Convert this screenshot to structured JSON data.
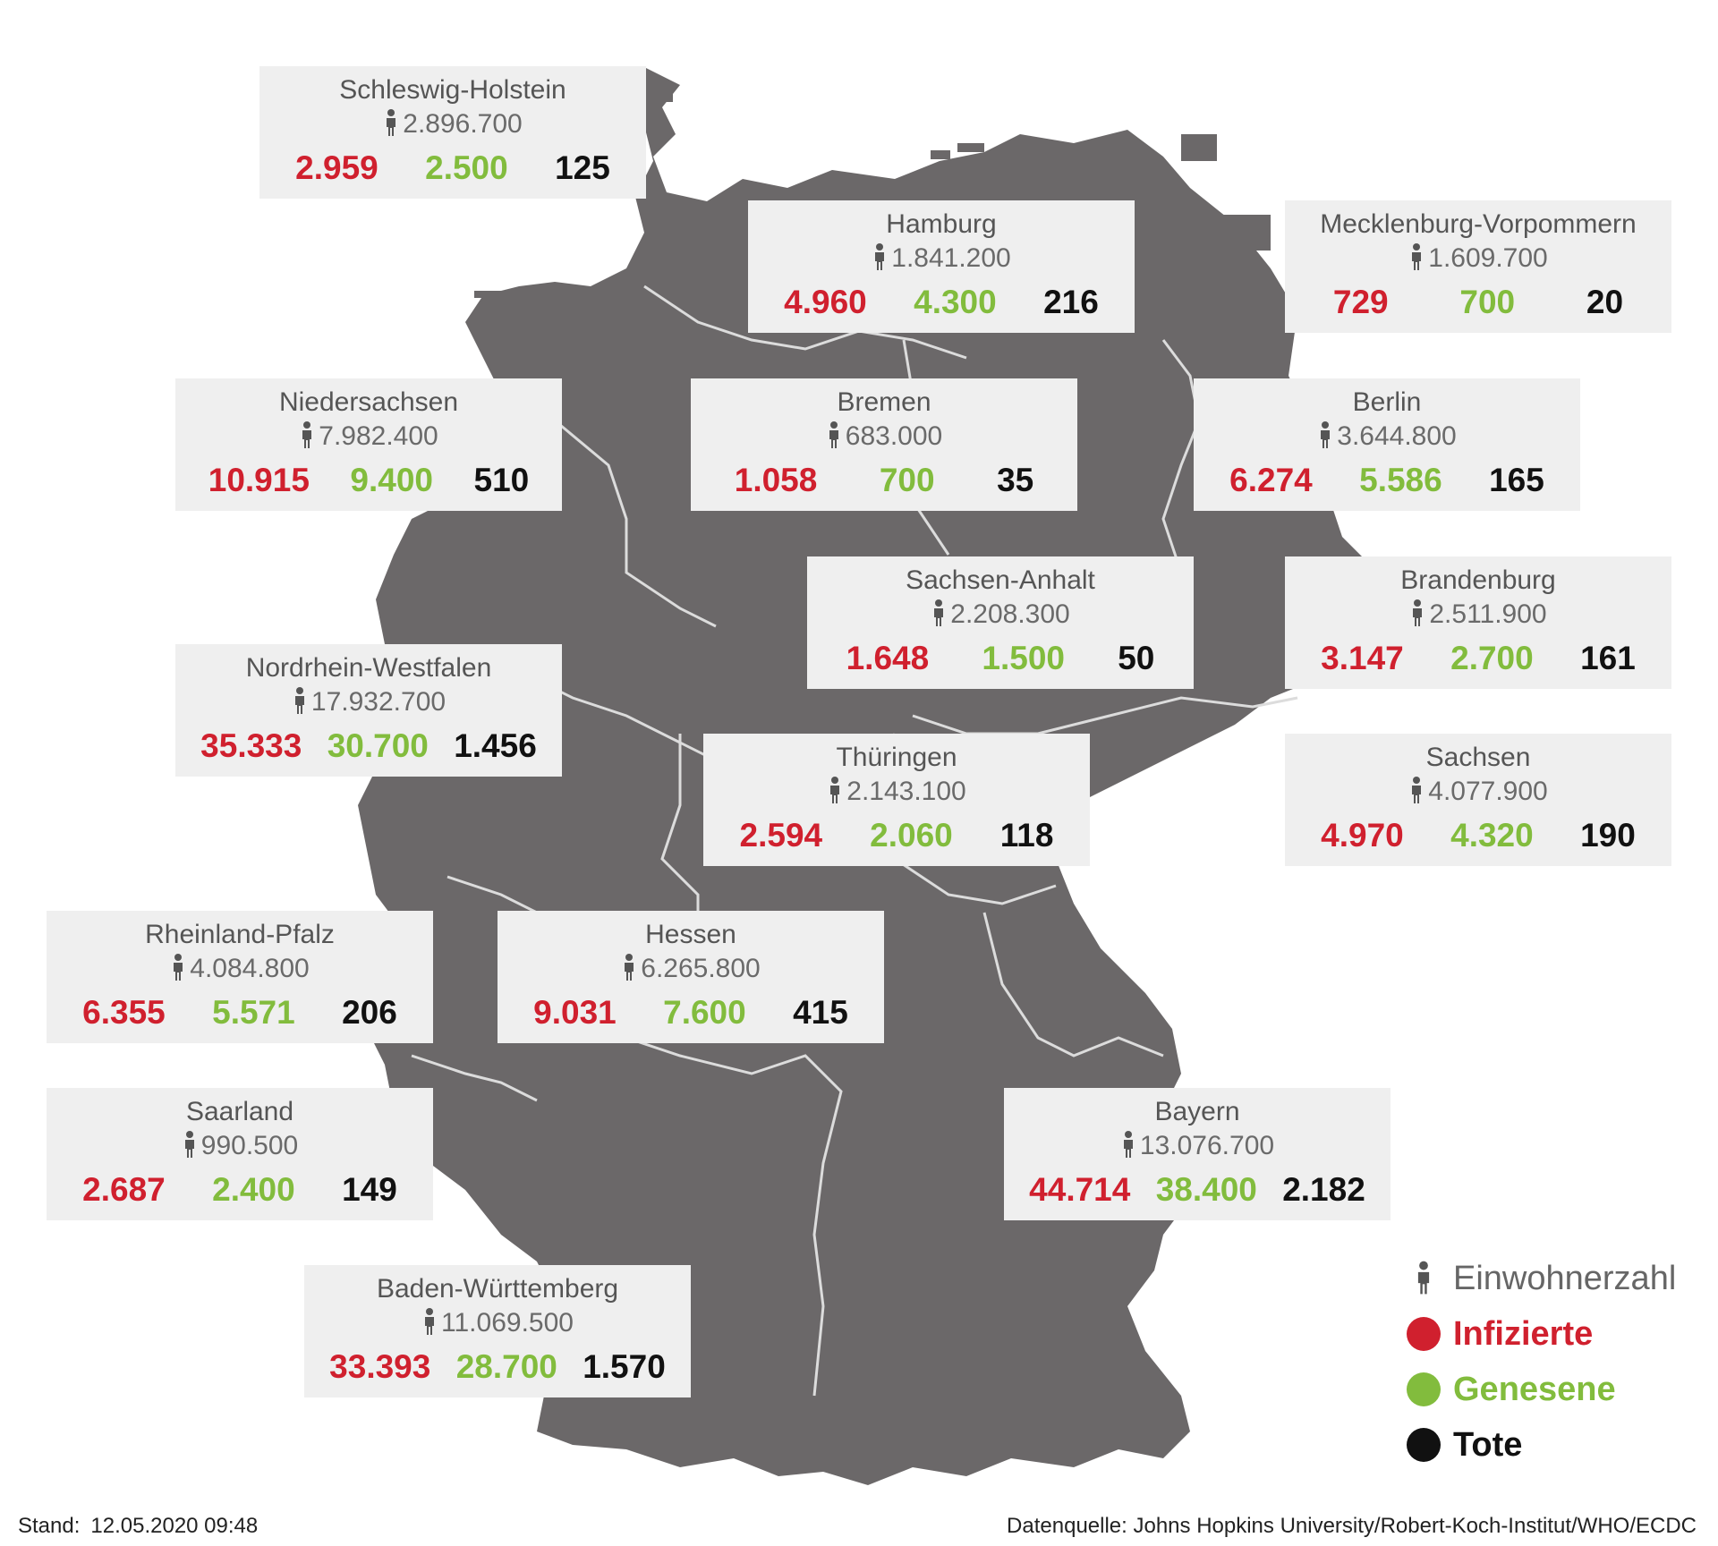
{
  "states": [
    {
      "id": "schleswig-holstein",
      "name": "Schleswig-Holstein",
      "population": "2.896.700",
      "infected": "2.959",
      "recovered": "2.500",
      "deaths": "125"
    },
    {
      "id": "hamburg",
      "name": "Hamburg",
      "population": "1.841.200",
      "infected": "4.960",
      "recovered": "4.300",
      "deaths": "216"
    },
    {
      "id": "mecklenburg-vorpommern",
      "name": "Mecklenburg-Vorpommern",
      "population": "1.609.700",
      "infected": "729",
      "recovered": "700",
      "deaths": "20"
    },
    {
      "id": "niedersachsen",
      "name": "Niedersachsen",
      "population": "7.982.400",
      "infected": "10.915",
      "recovered": "9.400",
      "deaths": "510"
    },
    {
      "id": "bremen",
      "name": "Bremen",
      "population": "683.000",
      "infected": "1.058",
      "recovered": "700",
      "deaths": "35"
    },
    {
      "id": "berlin",
      "name": "Berlin",
      "population": "3.644.800",
      "infected": "6.274",
      "recovered": "5.586",
      "deaths": "165"
    },
    {
      "id": "sachsen-anhalt",
      "name": "Sachsen-Anhalt",
      "population": "2.208.300",
      "infected": "1.648",
      "recovered": "1.500",
      "deaths": "50"
    },
    {
      "id": "brandenburg",
      "name": "Brandenburg",
      "population": "2.511.900",
      "infected": "3.147",
      "recovered": "2.700",
      "deaths": "161"
    },
    {
      "id": "nordrhein-westfalen",
      "name": "Nordrhein-Westfalen",
      "population": "17.932.700",
      "infected": "35.333",
      "recovered": "30.700",
      "deaths": "1.456"
    },
    {
      "id": "thueringen",
      "name": "Thüringen",
      "population": "2.143.100",
      "infected": "2.594",
      "recovered": "2.060",
      "deaths": "118"
    },
    {
      "id": "sachsen",
      "name": "Sachsen",
      "population": "4.077.900",
      "infected": "4.970",
      "recovered": "4.320",
      "deaths": "190"
    },
    {
      "id": "rheinland-pfalz",
      "name": "Rheinland-Pfalz",
      "population": "4.084.800",
      "infected": "6.355",
      "recovered": "5.571",
      "deaths": "206"
    },
    {
      "id": "hessen",
      "name": "Hessen",
      "population": "6.265.800",
      "infected": "9.031",
      "recovered": "7.600",
      "deaths": "415"
    },
    {
      "id": "saarland",
      "name": "Saarland",
      "population": "990.500",
      "infected": "2.687",
      "recovered": "2.400",
      "deaths": "149"
    },
    {
      "id": "bayern",
      "name": "Bayern",
      "population": "13.076.700",
      "infected": "44.714",
      "recovered": "38.400",
      "deaths": "2.182"
    },
    {
      "id": "baden-wuerttemberg",
      "name": "Baden-Württemberg",
      "population": "11.069.500",
      "infected": "33.393",
      "recovered": "28.700",
      "deaths": "1.570"
    }
  ],
  "legend": {
    "population": "Einwohnerzahl",
    "infected": "Infizierte",
    "recovered": "Genesene",
    "deaths": "Tote"
  },
  "colors": {
    "infected": "#d0202e",
    "recovered": "#82bc3d",
    "deaths": "#111111",
    "map": "#6b6869",
    "box": "#efefef"
  },
  "footer": {
    "stand_label": "Stand:",
    "stand_value": "12.05.2020 09:48",
    "source": "Datenquelle: Johns Hopkins University/Robert-Koch-Institut/WHO/ECDC"
  },
  "icons": {
    "person": "person-icon"
  }
}
